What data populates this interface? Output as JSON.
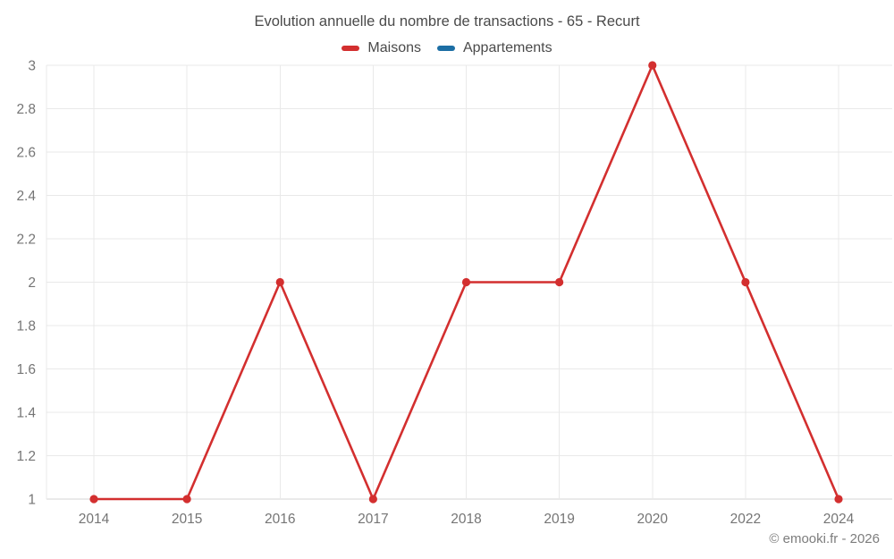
{
  "header": {
    "title": "Evolution annuelle du nombre de transactions - 65 - Recurt"
  },
  "legend": [
    {
      "label": "Maisons",
      "color": "#d32f2f"
    },
    {
      "label": "Appartements",
      "color": "#1c6ea4"
    }
  ],
  "footer": {
    "credit": "© emooki.fr - 2026"
  },
  "colors": {
    "grid": "#e9e9e9",
    "axis": "#d6d6d6",
    "tick_text": "#757575",
    "title_text": "#4a4a4a",
    "background": "#ffffff"
  },
  "chart_data": {
    "type": "line",
    "title": "Evolution annuelle du nombre de transactions - 65 - Recurt",
    "xlabel": "",
    "ylabel": "",
    "categories": [
      "2014",
      "2015",
      "2016",
      "2017",
      "2018",
      "2019",
      "2020",
      "2022",
      "2024"
    ],
    "series": [
      {
        "name": "Maisons",
        "color": "#d32f2f",
        "values": [
          1,
          1,
          2,
          1,
          2,
          2,
          3,
          2,
          1
        ]
      },
      {
        "name": "Appartements",
        "color": "#1c6ea4",
        "values": []
      }
    ],
    "ylim": [
      1,
      3
    ],
    "yticks": [
      1,
      1.2,
      1.4,
      1.6,
      1.8,
      2,
      2.2,
      2.4,
      2.6,
      2.8,
      3
    ],
    "ytick_labels": [
      "1",
      "1.2",
      "1.4",
      "1.6",
      "1.8",
      "2",
      "2.2",
      "2.4",
      "2.6",
      "2.8",
      "3"
    ],
    "grid": true,
    "legend_position": "top",
    "marker": "circle"
  }
}
